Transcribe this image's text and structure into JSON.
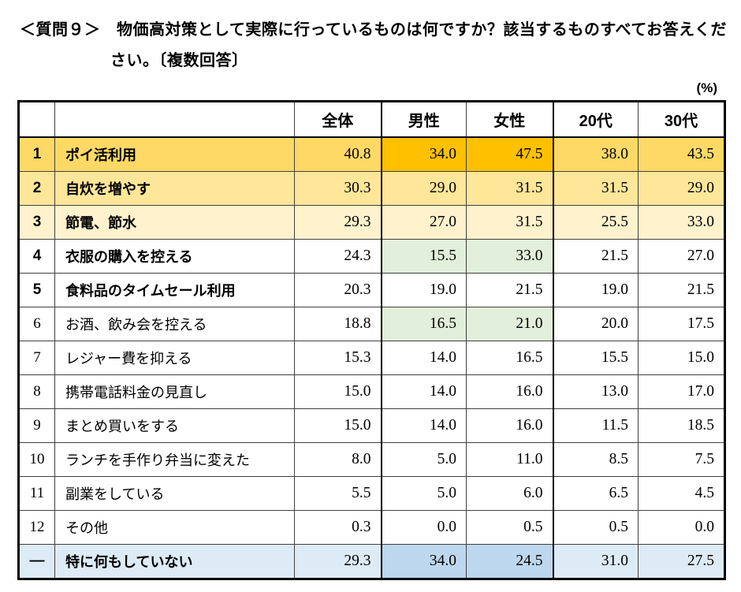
{
  "title": {
    "line1": "＜質問９＞　物価高対策として実際に行っているものは何ですか？該当するものすべてお答えくだ",
    "line2": "さい。〔複数回答〕"
  },
  "unit_label": "(%)",
  "colors": {
    "gold1": "#FFD966",
    "gold2": "#FFE699",
    "gold3": "#FFF2CC",
    "orange": "#FFC000",
    "green": "#E2EFDA",
    "blue": "#DDEBF7",
    "blue_dark": "#BDD7EE",
    "border_thin": "#404040",
    "border_thick": "#000000"
  },
  "table": {
    "columns": [
      "全体",
      "男性",
      "女性",
      "20代",
      "30代"
    ],
    "rows": [
      {
        "rank": "1",
        "label": "ポイ活利用",
        "values": [
          "40.8",
          "34.0",
          "47.5",
          "38.0",
          "43.5"
        ],
        "bold": true,
        "tone": "gold1",
        "mf_tone": "orange"
      },
      {
        "rank": "2",
        "label": "自炊を増やす",
        "values": [
          "30.3",
          "29.0",
          "31.5",
          "31.5",
          "29.0"
        ],
        "bold": true,
        "tone": "gold2",
        "mf_tone": null
      },
      {
        "rank": "3",
        "label": "節電、節水",
        "values": [
          "29.3",
          "27.0",
          "31.5",
          "25.5",
          "33.0"
        ],
        "bold": true,
        "tone": "gold3",
        "mf_tone": null
      },
      {
        "rank": "4",
        "label": "衣服の購入を控える",
        "values": [
          "24.3",
          "15.5",
          "33.0",
          "21.5",
          "27.0"
        ],
        "bold": true,
        "tone": null,
        "mf_tone": "green"
      },
      {
        "rank": "5",
        "label": "食料品のタイムセール利用",
        "values": [
          "20.3",
          "19.0",
          "21.5",
          "19.0",
          "21.5"
        ],
        "bold": true,
        "tone": null,
        "mf_tone": null
      },
      {
        "rank": "6",
        "label": "お酒、飲み会を控える",
        "values": [
          "18.8",
          "16.5",
          "21.0",
          "20.0",
          "17.5"
        ],
        "bold": false,
        "tone": null,
        "mf_tone": "green"
      },
      {
        "rank": "7",
        "label": "レジャー費を抑える",
        "values": [
          "15.3",
          "14.0",
          "16.5",
          "15.5",
          "15.0"
        ],
        "bold": false,
        "tone": null,
        "mf_tone": null
      },
      {
        "rank": "8",
        "label": "携帯電話料金の見直し",
        "values": [
          "15.0",
          "14.0",
          "16.0",
          "13.0",
          "17.0"
        ],
        "bold": false,
        "tone": null,
        "mf_tone": null
      },
      {
        "rank": "9",
        "label": "まとめ買いをする",
        "values": [
          "15.0",
          "14.0",
          "16.0",
          "11.5",
          "18.5"
        ],
        "bold": false,
        "tone": null,
        "mf_tone": null
      },
      {
        "rank": "10",
        "label": "ランチを手作り弁当に変えた",
        "values": [
          "8.0",
          "5.0",
          "11.0",
          "8.5",
          "7.5"
        ],
        "bold": false,
        "tone": null,
        "mf_tone": null
      },
      {
        "rank": "11",
        "label": "副業をしている",
        "values": [
          "5.5",
          "5.0",
          "6.0",
          "6.5",
          "4.5"
        ],
        "bold": false,
        "tone": null,
        "mf_tone": null
      },
      {
        "rank": "12",
        "label": "その他",
        "values": [
          "0.3",
          "0.0",
          "0.5",
          "0.5",
          "0.0"
        ],
        "bold": false,
        "tone": null,
        "mf_tone": null
      },
      {
        "rank": "—",
        "label": "特に何もしていない",
        "values": [
          "29.3",
          "34.0",
          "24.5",
          "31.0",
          "27.5"
        ],
        "bold": true,
        "tone": "blue",
        "mf_tone": "blue_dark"
      }
    ]
  }
}
